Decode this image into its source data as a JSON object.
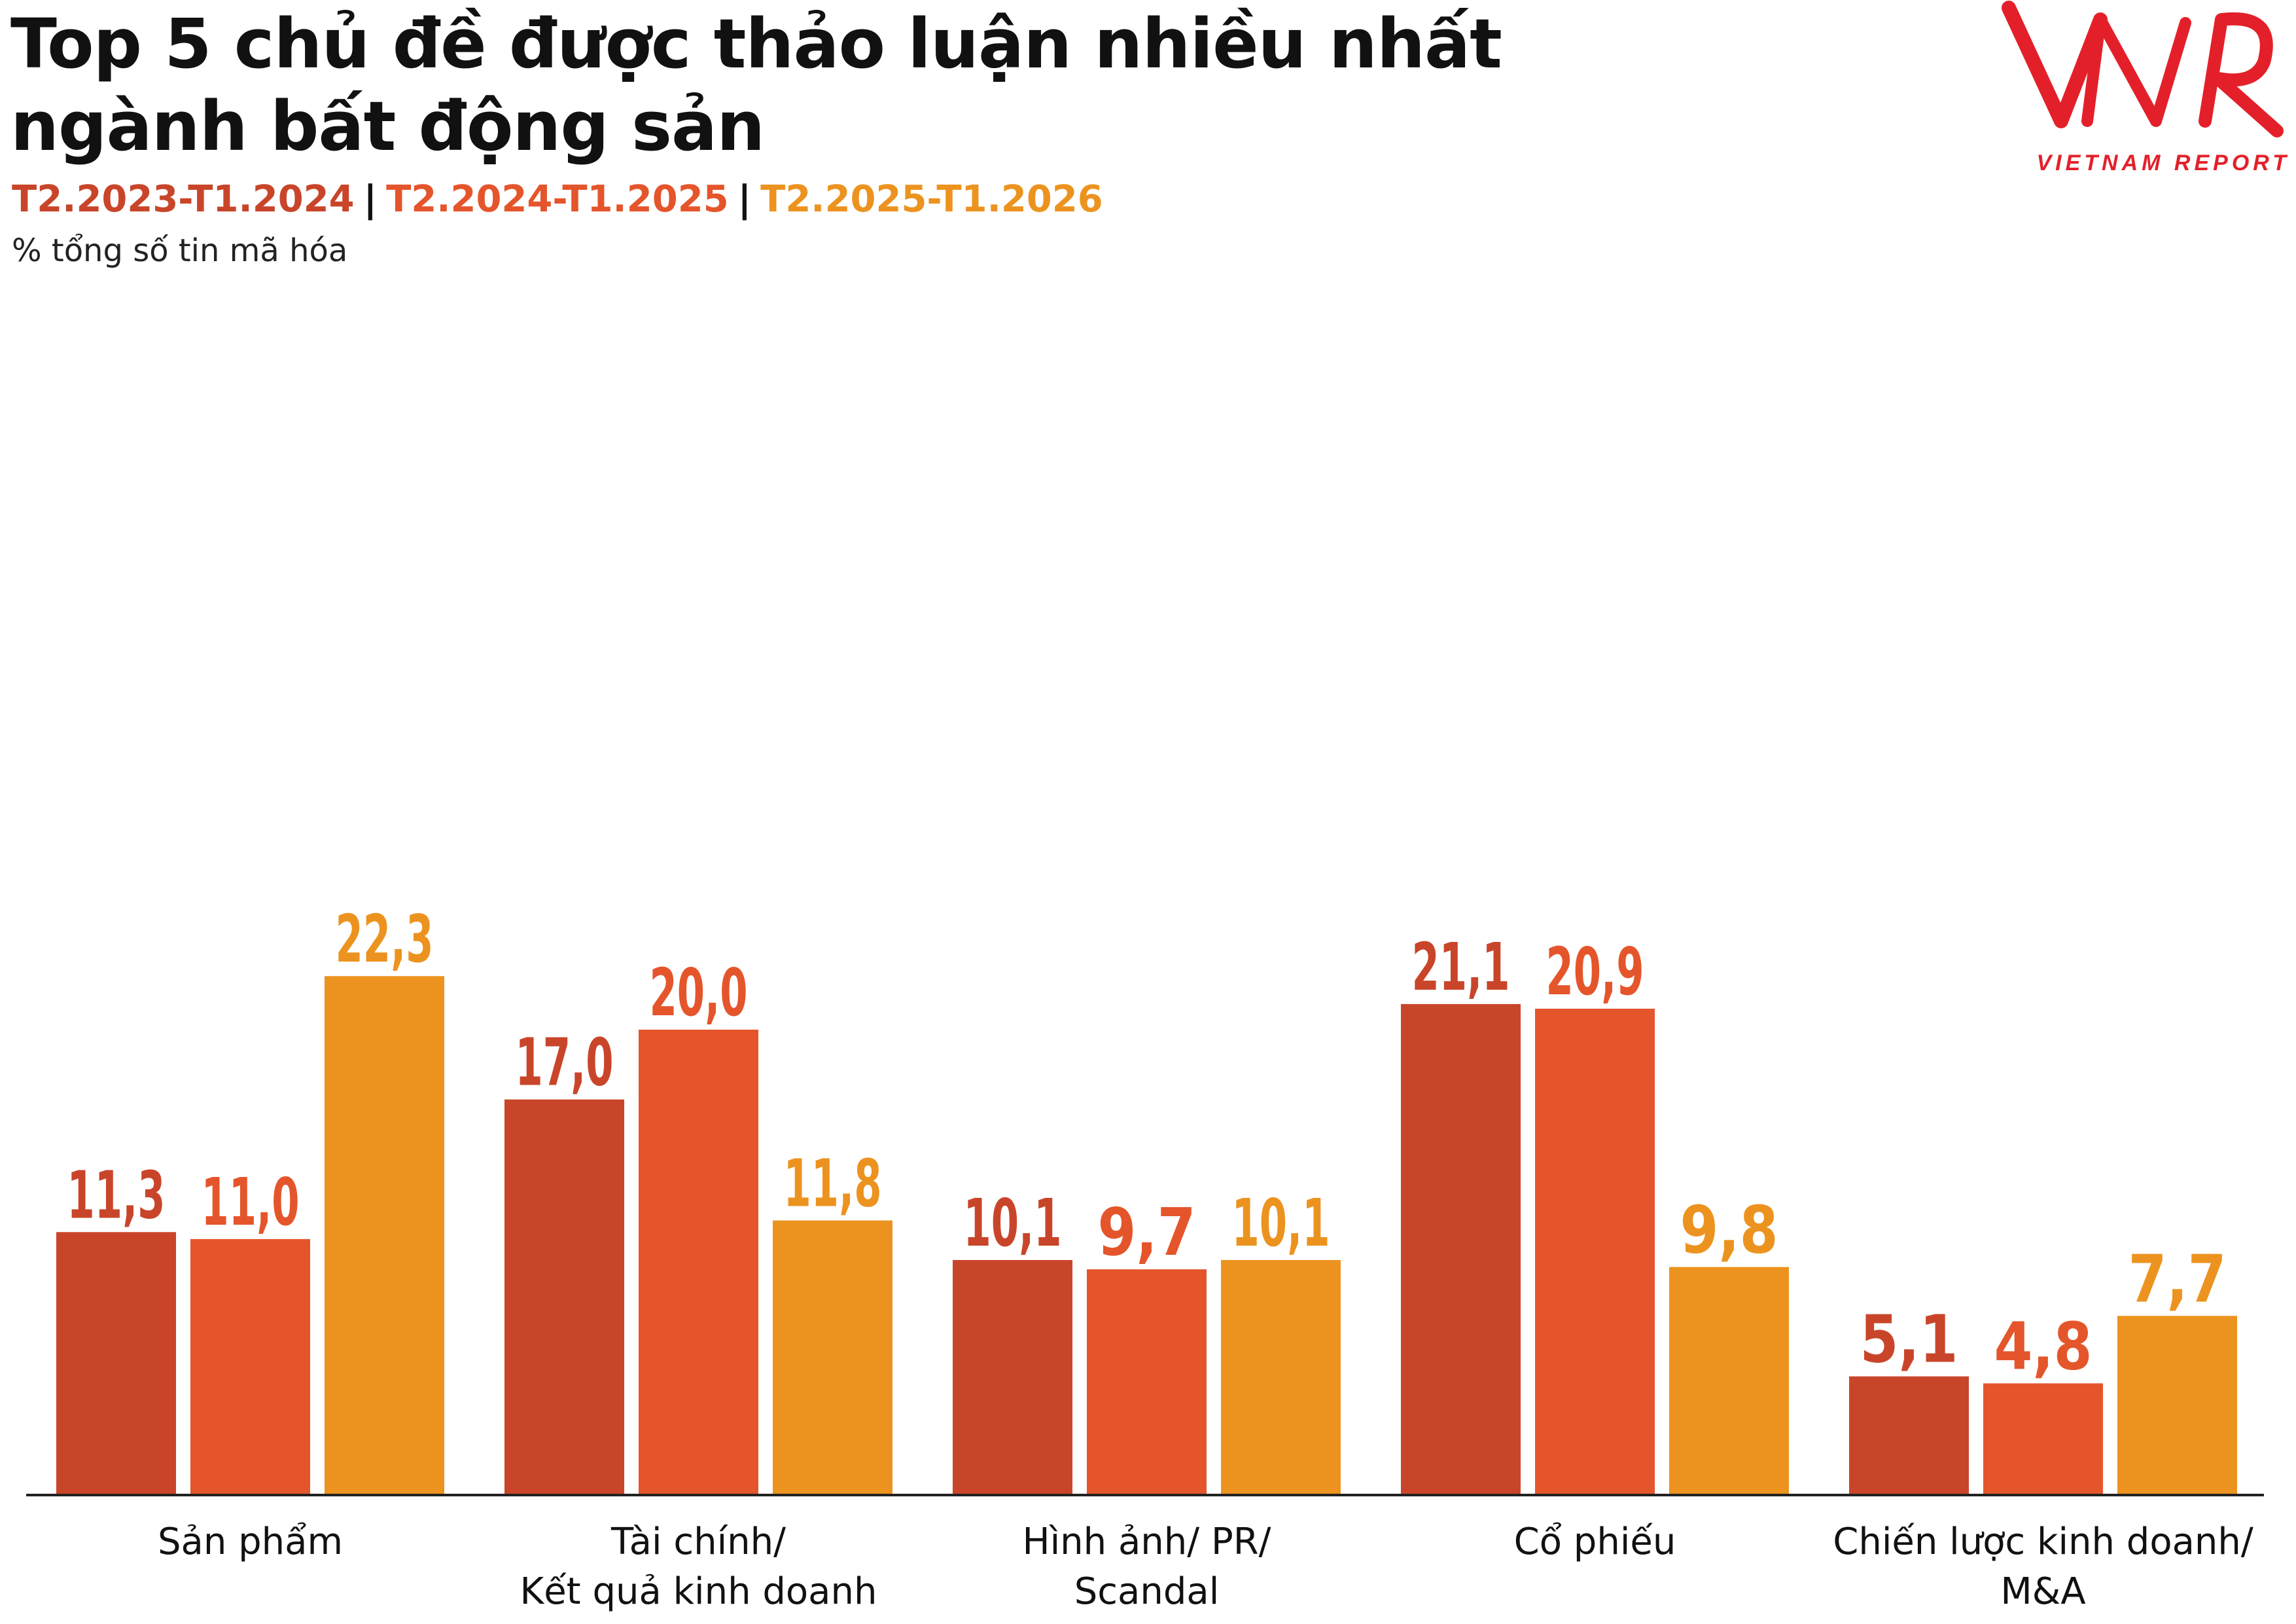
{
  "title_line1": "Top 5 chủ đề được thảo luận nhiều nhất",
  "title_line2": "ngành bất động sản",
  "unit_label": "% tổng số tin mã hóa",
  "logo": {
    "mark": "VNR",
    "tagline": "VIETNAM REPORT"
  },
  "colors": {
    "series1": "#C9452A",
    "series2": "#E5552B",
    "series3": "#EC931F",
    "axis": "#222222"
  },
  "chart_data": {
    "type": "bar",
    "title": "Top 5 chủ đề được thảo luận nhiều nhất ngành bất động sản",
    "ylabel": "% tổng số tin mã hóa",
    "legend_placement": "top-left",
    "grid": false,
    "ylim": [
      0,
      24
    ],
    "categories": [
      "Sản phẩm",
      "Tài chính/\nKết quả kinh doanh",
      "Hình ảnh/ PR/\nScandal",
      "Cổ phiếu",
      "Chiến lược kinh doanh/\nM&A"
    ],
    "series": [
      {
        "name": "T2.2023-T1.2024",
        "color": "#C9452A",
        "values": [
          11.3,
          17.0,
          10.1,
          21.1,
          5.1
        ],
        "labels": [
          "11,3",
          "17,0",
          "10,1",
          "21,1",
          "5,1"
        ]
      },
      {
        "name": "T2.2024-T1.2025",
        "color": "#E5552B",
        "values": [
          11.0,
          20.0,
          9.7,
          20.9,
          4.8
        ],
        "labels": [
          "11,0",
          "20,0",
          "9,7",
          "20,9",
          "4,8"
        ]
      },
      {
        "name": "T2.2025-T1.2026",
        "color": "#EC931F",
        "values": [
          22.3,
          11.8,
          10.1,
          9.8,
          7.7
        ],
        "labels": [
          "22,3",
          "11,8",
          "10,1",
          "9,8",
          "7,7"
        ]
      }
    ]
  }
}
